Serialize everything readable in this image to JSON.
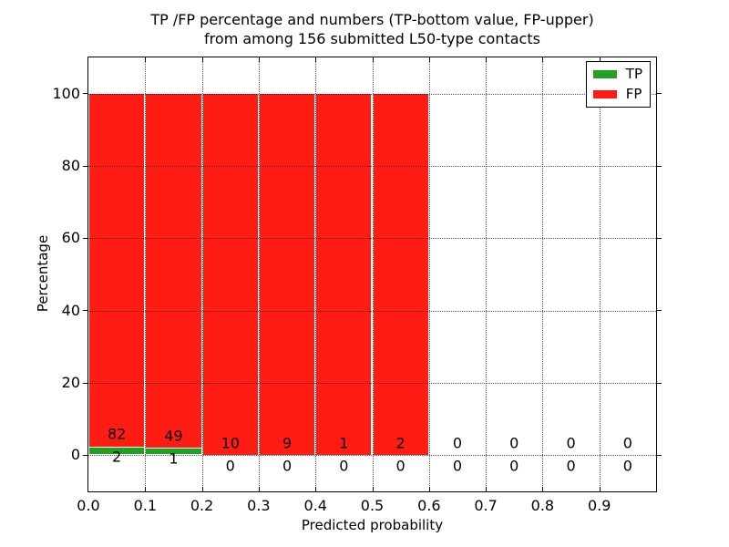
{
  "chart_data": {
    "type": "bar",
    "stacked": true,
    "title_line1": "TP /FP percentage and numbers (TP-bottom value, FP-upper)",
    "title_line2": "from among 156 submitted L50-type contacts",
    "xlabel": "Predicted probability",
    "ylabel": "Percentage",
    "xlim": [
      0.0,
      1.0
    ],
    "ylim": [
      -10,
      110
    ],
    "bin_width": 0.1,
    "bin_starts": [
      0.0,
      0.1,
      0.2,
      0.3,
      0.4,
      0.5,
      0.6,
      0.7,
      0.8,
      0.9
    ],
    "x_tick_labels": [
      "0.0",
      "0.1",
      "0.2",
      "0.3",
      "0.4",
      "0.5",
      "0.6",
      "0.7",
      "0.8",
      "0.9"
    ],
    "y_tick_values": [
      0,
      20,
      40,
      60,
      80,
      100
    ],
    "grid": {
      "style": "dotted",
      "color": "#000000",
      "drawn_over_bars": true
    },
    "series": [
      {
        "name": "TP",
        "color": "#22a022",
        "counts": [
          2,
          1,
          0,
          0,
          0,
          0,
          0,
          0,
          0,
          0
        ],
        "pct": [
          2.381,
          2.0,
          0,
          0,
          0,
          0,
          0,
          0,
          0,
          0
        ]
      },
      {
        "name": "FP",
        "color": "#fe1c13",
        "counts": [
          82,
          49,
          10,
          9,
          1,
          2,
          0,
          0,
          0,
          0
        ],
        "pct": [
          97.619,
          98.0,
          100,
          100,
          100,
          100,
          0,
          0,
          0,
          0
        ]
      }
    ],
    "legend": {
      "position": "upper right",
      "entries": [
        {
          "label": "TP",
          "color": "#22a022"
        },
        {
          "label": "FP",
          "color": "#fe1c13"
        }
      ]
    },
    "axis_color": "#000000",
    "background_color": "#ffffff"
  }
}
